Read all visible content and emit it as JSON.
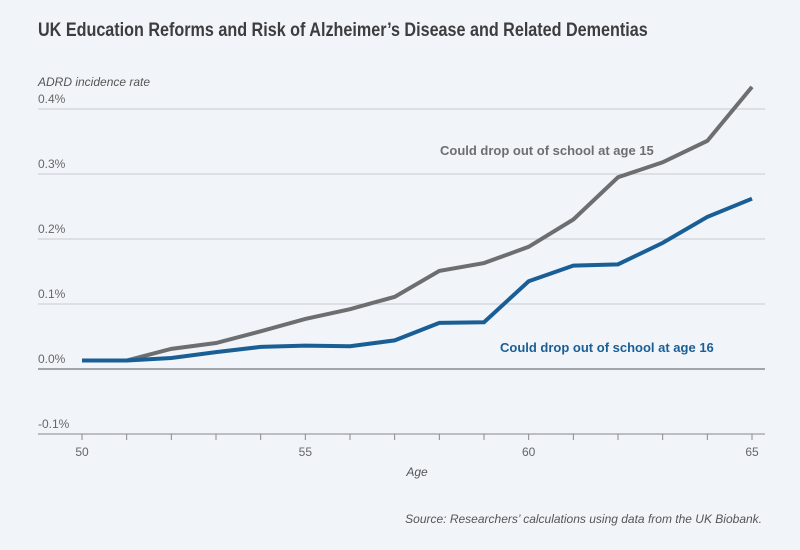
{
  "chart_data": {
    "type": "line",
    "title": "UK Education Reforms and Risk of Alzheimer’s Disease and Related Dementias",
    "ylabel": "ADRD incidence rate",
    "xlabel": "Age",
    "source": "Source: Researchers’ calculations using data from the UK Biobank.",
    "xlim": [
      50,
      65
    ],
    "ylim": [
      -0.1,
      0.4
    ],
    "x_ticks": [
      "50",
      "55",
      "60",
      "65"
    ],
    "y_ticks": [
      "0.4%",
      "0.3%",
      "0.2%",
      "0.1%",
      "0.0%",
      "-0.1%"
    ],
    "y_tick_values": [
      0.4,
      0.3,
      0.2,
      0.1,
      0.0,
      -0.1
    ],
    "grid": "horizontal",
    "x": [
      50,
      51,
      52,
      53,
      54,
      55,
      56,
      57,
      58,
      59,
      60,
      61,
      62,
      63,
      64,
      65
    ],
    "series": [
      {
        "name": "Could drop out of school at age 15",
        "color": "#6d6e70",
        "values": [
          0.013,
          0.013,
          0.031,
          0.04,
          0.058,
          0.077,
          0.092,
          0.111,
          0.151,
          0.163,
          0.188,
          0.23,
          0.295,
          0.318,
          0.351,
          0.434
        ]
      },
      {
        "name": "Could drop out of school at age 16",
        "color": "#1a5e96",
        "values": [
          0.013,
          0.013,
          0.017,
          0.026,
          0.034,
          0.036,
          0.035,
          0.044,
          0.071,
          0.072,
          0.135,
          0.159,
          0.161,
          0.194,
          0.234,
          0.262
        ]
      }
    ]
  }
}
